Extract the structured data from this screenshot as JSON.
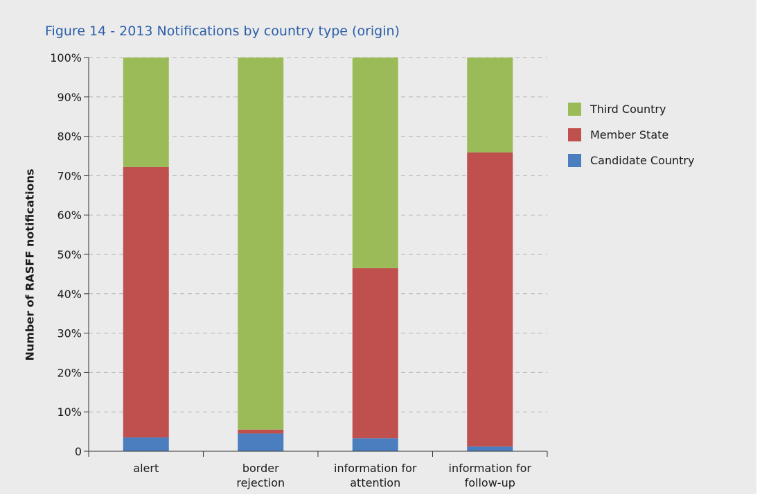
{
  "chart_data": {
    "type": "bar",
    "stacked": true,
    "title": "Figure 14 - 2013 Notifications by country type (origin)",
    "xlabel": "",
    "ylabel": "Number of RASFF notifications",
    "categories": [
      [
        "alert"
      ],
      [
        "border",
        "rejection"
      ],
      [
        "information for",
        "attention"
      ],
      [
        "information for",
        "follow-up"
      ]
    ],
    "series": [
      {
        "name": "Candidate Country",
        "color": "#4a7ebf",
        "values": [
          3.5,
          4.5,
          3.3,
          1.2
        ]
      },
      {
        "name": "Member State",
        "color": "#c0504d",
        "values": [
          68.7,
          1.0,
          43.2,
          74.7
        ]
      },
      {
        "name": "Third Country",
        "color": "#9bbb59",
        "values": [
          27.8,
          94.5,
          53.5,
          24.1
        ]
      }
    ],
    "ylim": [
      0,
      100
    ],
    "yticks": [
      {
        "value": 0,
        "label": "0"
      },
      {
        "value": 10,
        "label": "10%"
      },
      {
        "value": 20,
        "label": "20%"
      },
      {
        "value": 30,
        "label": "30%"
      },
      {
        "value": 40,
        "label": "40%"
      },
      {
        "value": 50,
        "label": "50%"
      },
      {
        "value": 60,
        "label": "60%"
      },
      {
        "value": 70,
        "label": "70%"
      },
      {
        "value": 80,
        "label": "80%"
      },
      {
        "value": 90,
        "label": "90%"
      },
      {
        "value": 100,
        "label": "100%"
      }
    ],
    "grid": true,
    "legend": "right",
    "legend_order": [
      "Third Country",
      "Member State",
      "Candidate Country"
    ]
  }
}
